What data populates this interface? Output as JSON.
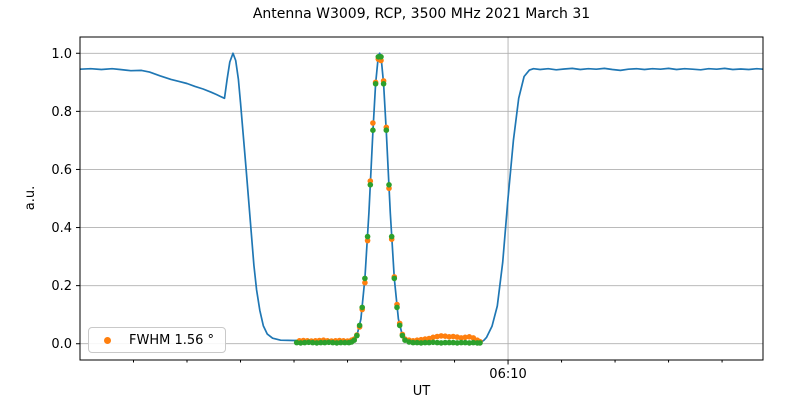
{
  "title": "Antenna W3009, RCP, 3500 MHz 2021 March 31",
  "axes": {
    "xlabel": "UT",
    "ylabel": "a.u."
  },
  "legend": {
    "label": "FWHM 1.56 °",
    "marker_color": "#ff7f0e",
    "location": "lower left"
  },
  "colors": {
    "line": "#1f77b4",
    "data_scatter": "#ff7f0e",
    "fit_scatter": "#2ca02c",
    "grid": "#b0b0b0",
    "spine": "#000000",
    "background": "#ffffff",
    "text": "#000000"
  },
  "chart_data": {
    "type": "line",
    "title": "Antenna W3009, RCP, 3500 MHz 2021 March 31",
    "xlabel": "UT",
    "ylabel": "a.u.",
    "grid": true,
    "x_unit": "minutes after 05:54 UT",
    "xlim": [
      0,
      25.53
    ],
    "ylim": [
      -0.056,
      1.056
    ],
    "y_ticks": [
      {
        "v": 0.0,
        "label": "0.0"
      },
      {
        "v": 0.2,
        "label": "0.2"
      },
      {
        "v": 0.4,
        "label": "0.4"
      },
      {
        "v": 0.6,
        "label": "0.6"
      },
      {
        "v": 0.8,
        "label": "0.8"
      },
      {
        "v": 1.0,
        "label": "1.0"
      }
    ],
    "x_major_ticks": [
      {
        "t": 16.0,
        "label": "06:10"
      }
    ],
    "x_minor_ticks": [
      2,
      4,
      6,
      8,
      10,
      12,
      14,
      18,
      20,
      22,
      24
    ],
    "legend": {
      "label": "FWHM 1.56 °",
      "series": "drift-scan-data"
    },
    "series": [
      {
        "name": "signal-trace",
        "type": "line",
        "color": "#1f77b4",
        "points": [
          [
            0,
            0.945
          ],
          [
            0.4,
            0.947
          ],
          [
            0.8,
            0.944
          ],
          [
            1.2,
            0.947
          ],
          [
            1.5,
            0.944
          ],
          [
            1.9,
            0.94
          ],
          [
            2.3,
            0.941
          ],
          [
            2.6,
            0.935
          ],
          [
            3.0,
            0.922
          ],
          [
            3.4,
            0.91
          ],
          [
            3.7,
            0.903
          ],
          [
            4.0,
            0.896
          ],
          [
            4.3,
            0.886
          ],
          [
            4.6,
            0.877
          ],
          [
            4.9,
            0.866
          ],
          [
            5.1,
            0.858
          ],
          [
            5.25,
            0.851
          ],
          [
            5.4,
            0.845
          ],
          [
            5.5,
            0.91
          ],
          [
            5.6,
            0.97
          ],
          [
            5.72,
            1.0
          ],
          [
            5.82,
            0.975
          ],
          [
            5.92,
            0.91
          ],
          [
            6.0,
            0.83
          ],
          [
            6.1,
            0.72
          ],
          [
            6.2,
            0.61
          ],
          [
            6.3,
            0.5
          ],
          [
            6.4,
            0.385
          ],
          [
            6.5,
            0.27
          ],
          [
            6.6,
            0.185
          ],
          [
            6.72,
            0.115
          ],
          [
            6.85,
            0.062
          ],
          [
            7.0,
            0.033
          ],
          [
            7.2,
            0.019
          ],
          [
            7.5,
            0.012
          ],
          [
            8.0,
            0.011
          ],
          [
            8.5,
            0.012
          ],
          [
            9.0,
            0.011
          ],
          [
            9.5,
            0.012
          ],
          [
            10.0,
            0.013
          ],
          [
            10.2,
            0.008
          ],
          [
            10.35,
            0.028
          ],
          [
            10.5,
            0.085
          ],
          [
            10.65,
            0.225
          ],
          [
            10.8,
            0.45
          ],
          [
            10.95,
            0.73
          ],
          [
            11.05,
            0.895
          ],
          [
            11.15,
            0.99
          ],
          [
            11.2,
            1.0
          ],
          [
            11.25,
            0.99
          ],
          [
            11.35,
            0.895
          ],
          [
            11.45,
            0.73
          ],
          [
            11.6,
            0.45
          ],
          [
            11.75,
            0.225
          ],
          [
            11.9,
            0.085
          ],
          [
            12.05,
            0.028
          ],
          [
            12.2,
            0.01
          ],
          [
            12.5,
            0.01
          ],
          [
            12.8,
            0.013
          ],
          [
            13.1,
            0.017
          ],
          [
            13.35,
            0.024
          ],
          [
            13.6,
            0.025
          ],
          [
            13.9,
            0.024
          ],
          [
            14.2,
            0.021
          ],
          [
            14.5,
            0.022
          ],
          [
            14.7,
            0.018
          ],
          [
            14.85,
            0.008
          ],
          [
            15.0,
            0.006
          ],
          [
            15.1,
            0.012
          ],
          [
            15.2,
            0.022
          ],
          [
            15.4,
            0.06
          ],
          [
            15.6,
            0.13
          ],
          [
            15.8,
            0.28
          ],
          [
            16.0,
            0.5
          ],
          [
            16.2,
            0.7
          ],
          [
            16.4,
            0.845
          ],
          [
            16.6,
            0.92
          ],
          [
            16.8,
            0.942
          ],
          [
            16.95,
            0.947
          ],
          [
            17.2,
            0.944
          ],
          [
            17.5,
            0.947
          ],
          [
            17.8,
            0.943
          ],
          [
            18.1,
            0.946
          ],
          [
            18.4,
            0.948
          ],
          [
            18.7,
            0.944
          ],
          [
            19.0,
            0.947
          ],
          [
            19.3,
            0.945
          ],
          [
            19.6,
            0.948
          ],
          [
            19.9,
            0.944
          ],
          [
            20.2,
            0.941
          ],
          [
            20.5,
            0.945
          ],
          [
            20.8,
            0.947
          ],
          [
            21.1,
            0.944
          ],
          [
            21.4,
            0.947
          ],
          [
            21.7,
            0.945
          ],
          [
            22.0,
            0.948
          ],
          [
            22.3,
            0.944
          ],
          [
            22.6,
            0.947
          ],
          [
            22.9,
            0.945
          ],
          [
            23.2,
            0.943
          ],
          [
            23.5,
            0.947
          ],
          [
            23.8,
            0.945
          ],
          [
            24.1,
            0.948
          ],
          [
            24.4,
            0.944
          ],
          [
            24.7,
            0.946
          ],
          [
            25.0,
            0.944
          ],
          [
            25.3,
            0.947
          ],
          [
            25.53,
            0.945
          ]
        ]
      },
      {
        "name": "drift-scan-data",
        "type": "scatter",
        "color": "#ff7f0e",
        "points": [
          [
            8.2,
            0.01
          ],
          [
            8.35,
            0.011
          ],
          [
            8.5,
            0.01
          ],
          [
            8.65,
            0.009
          ],
          [
            8.8,
            0.01
          ],
          [
            8.95,
            0.011
          ],
          [
            9.1,
            0.012
          ],
          [
            9.25,
            0.01
          ],
          [
            9.4,
            0.009
          ],
          [
            9.55,
            0.01
          ],
          [
            9.7,
            0.011
          ],
          [
            9.85,
            0.01
          ],
          [
            10.0,
            0.009
          ],
          [
            10.15,
            0.012
          ],
          [
            10.25,
            0.016
          ],
          [
            10.35,
            0.03
          ],
          [
            10.45,
            0.058
          ],
          [
            10.55,
            0.118
          ],
          [
            10.65,
            0.21
          ],
          [
            10.75,
            0.355
          ],
          [
            10.85,
            0.56
          ],
          [
            10.95,
            0.76
          ],
          [
            11.05,
            0.9
          ],
          [
            11.15,
            0.98
          ],
          [
            11.25,
            0.975
          ],
          [
            11.35,
            0.905
          ],
          [
            11.45,
            0.745
          ],
          [
            11.55,
            0.535
          ],
          [
            11.65,
            0.36
          ],
          [
            11.75,
            0.23
          ],
          [
            11.85,
            0.135
          ],
          [
            11.95,
            0.07
          ],
          [
            12.05,
            0.032
          ],
          [
            12.15,
            0.016
          ],
          [
            12.3,
            0.012
          ],
          [
            12.45,
            0.01
          ],
          [
            12.6,
            0.012
          ],
          [
            12.75,
            0.014
          ],
          [
            12.9,
            0.016
          ],
          [
            13.05,
            0.018
          ],
          [
            13.2,
            0.022
          ],
          [
            13.35,
            0.025
          ],
          [
            13.5,
            0.027
          ],
          [
            13.65,
            0.026
          ],
          [
            13.8,
            0.024
          ],
          [
            13.95,
            0.025
          ],
          [
            14.1,
            0.023
          ],
          [
            14.25,
            0.02
          ],
          [
            14.4,
            0.022
          ],
          [
            14.55,
            0.024
          ],
          [
            14.7,
            0.02
          ],
          [
            14.85,
            0.012
          ],
          [
            14.95,
            0.007
          ]
        ]
      },
      {
        "name": "gaussian-fit",
        "type": "scatter",
        "color": "#2ca02c",
        "points": [
          [
            8.1,
            0.004
          ],
          [
            8.25,
            0.003
          ],
          [
            8.4,
            0.004
          ],
          [
            8.55,
            0.005
          ],
          [
            8.7,
            0.004
          ],
          [
            8.85,
            0.003
          ],
          [
            9.0,
            0.004
          ],
          [
            9.15,
            0.004
          ],
          [
            9.3,
            0.005
          ],
          [
            9.45,
            0.004
          ],
          [
            9.6,
            0.003
          ],
          [
            9.75,
            0.004
          ],
          [
            9.9,
            0.004
          ],
          [
            10.05,
            0.004
          ],
          [
            10.15,
            0.006
          ],
          [
            10.25,
            0.012
          ],
          [
            10.35,
            0.028
          ],
          [
            10.45,
            0.063
          ],
          [
            10.55,
            0.125
          ],
          [
            10.65,
            0.225
          ],
          [
            10.75,
            0.369
          ],
          [
            10.85,
            0.547
          ],
          [
            10.95,
            0.735
          ],
          [
            11.05,
            0.895
          ],
          [
            11.15,
            0.988
          ],
          [
            11.25,
            0.988
          ],
          [
            11.35,
            0.895
          ],
          [
            11.45,
            0.735
          ],
          [
            11.55,
            0.547
          ],
          [
            11.65,
            0.369
          ],
          [
            11.75,
            0.225
          ],
          [
            11.85,
            0.125
          ],
          [
            11.95,
            0.063
          ],
          [
            12.05,
            0.028
          ],
          [
            12.15,
            0.012
          ],
          [
            12.3,
            0.006
          ],
          [
            12.45,
            0.004
          ],
          [
            12.6,
            0.004
          ],
          [
            12.75,
            0.003
          ],
          [
            12.9,
            0.004
          ],
          [
            13.05,
            0.004
          ],
          [
            13.2,
            0.005
          ],
          [
            13.35,
            0.004
          ],
          [
            13.5,
            0.003
          ],
          [
            13.65,
            0.004
          ],
          [
            13.8,
            0.004
          ],
          [
            13.95,
            0.004
          ],
          [
            14.1,
            0.003
          ],
          [
            14.25,
            0.004
          ],
          [
            14.4,
            0.004
          ],
          [
            14.55,
            0.003
          ],
          [
            14.7,
            0.004
          ],
          [
            14.85,
            0.003
          ],
          [
            14.95,
            0.003
          ]
        ]
      }
    ],
    "fit_result": {
      "fwhm_deg": 1.56,
      "peak_time_offset_min": 11.2,
      "peak_amplitude": 1.0
    }
  }
}
